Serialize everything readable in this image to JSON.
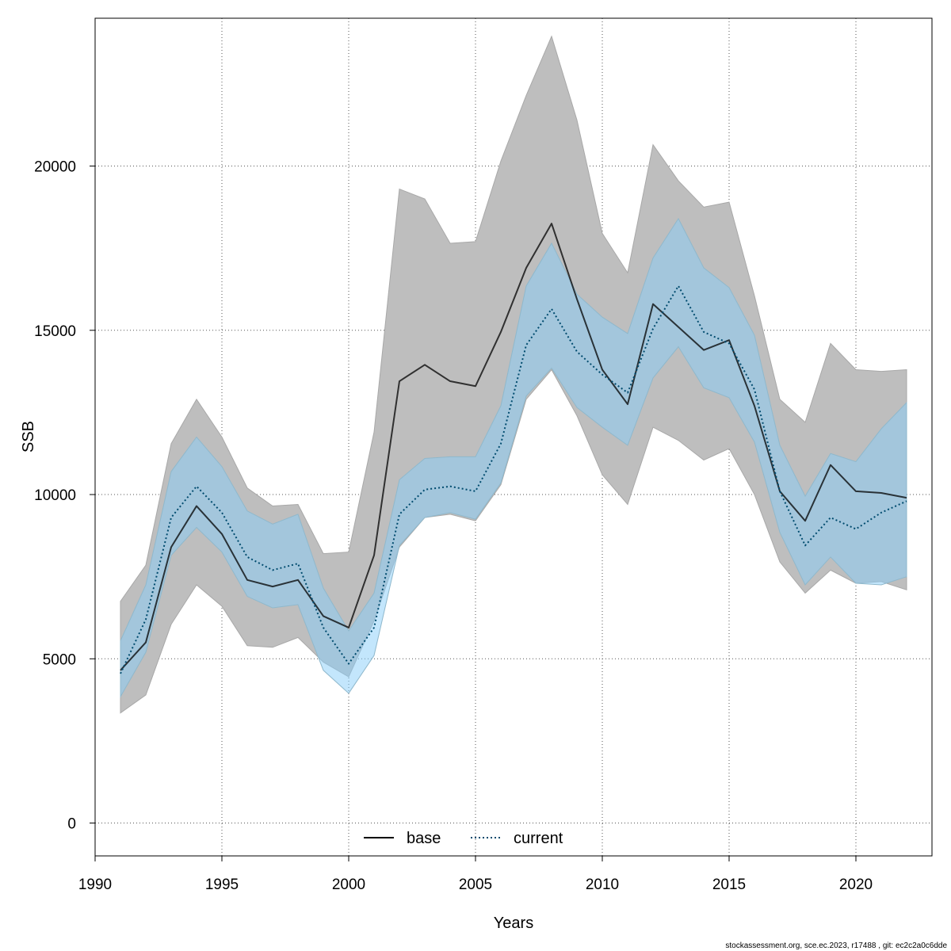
{
  "chart_data": {
    "type": "line",
    "xlabel": "Years",
    "ylabel": "SSB",
    "xlim": [
      1990,
      2023
    ],
    "ylim": [
      -1000,
      24500
    ],
    "x_ticks": [
      1990,
      1995,
      2000,
      2005,
      2010,
      2015,
      2020
    ],
    "x_tick_labels": [
      "1990",
      "1995",
      "2000",
      "2005",
      "2010",
      "2015",
      "2020"
    ],
    "y_ticks": [
      0,
      5000,
      10000,
      15000,
      20000
    ],
    "y_tick_labels": [
      "0",
      "5000",
      "10000",
      "15000",
      "20000"
    ],
    "grid": true,
    "legend_position": "bottom",
    "x": [
      1991,
      1992,
      1993,
      1994,
      1995,
      1996,
      1997,
      1998,
      1999,
      2000,
      2001,
      2002,
      2003,
      2004,
      2005,
      2006,
      2007,
      2008,
      2009,
      2010,
      2011,
      2012,
      2013,
      2014,
      2015,
      2016,
      2017,
      2018,
      2019,
      2020,
      2021,
      2022
    ],
    "series": [
      {
        "name": "base",
        "color": "#000000",
        "band_color": "#bebebe",
        "dash": "solid",
        "values": [
          4650,
          5500,
          8400,
          9650,
          8800,
          7400,
          7200,
          7400,
          6300,
          5950,
          8150,
          13450,
          13950,
          13450,
          13300,
          14950,
          16900,
          18250,
          15950,
          13800,
          12750,
          15800,
          15100,
          14400,
          14700,
          12700,
          10100,
          9200,
          10900,
          10100,
          10050,
          9900
        ],
        "lower": [
          3350,
          3900,
          6050,
          7250,
          6600,
          5400,
          5350,
          5650,
          4900,
          4450,
          6150,
          8400,
          9300,
          9400,
          9200,
          10300,
          12900,
          13800,
          12400,
          10600,
          9700,
          12050,
          11650,
          11050,
          11400,
          10000,
          7950,
          7000,
          7700,
          7300,
          7350,
          7100
        ],
        "upper": [
          6750,
          7850,
          11550,
          12900,
          11750,
          10200,
          9650,
          9700,
          8200,
          8250,
          11900,
          19300,
          19000,
          17650,
          17700,
          20150,
          22150,
          23950,
          21400,
          17950,
          16750,
          20650,
          19550,
          18750,
          18900,
          16050,
          12900,
          12200,
          14600,
          13800,
          13750,
          13800
        ]
      },
      {
        "name": "current",
        "color": "#004b6e",
        "band_color": "#87cefa",
        "dash": "dotted",
        "values": [
          4550,
          6200,
          9300,
          10250,
          9450,
          8100,
          7700,
          7900,
          5950,
          4850,
          5950,
          9400,
          10150,
          10250,
          10100,
          11550,
          14550,
          15650,
          14350,
          13650,
          13100,
          15050,
          16350,
          14950,
          14600,
          13200,
          10100,
          8450,
          9300,
          8950,
          9450,
          9800
        ],
        "lower": [
          3850,
          5200,
          8150,
          9000,
          8250,
          6900,
          6550,
          6650,
          4650,
          3950,
          5100,
          8450,
          9300,
          9450,
          9250,
          10350,
          13000,
          13850,
          12650,
          12050,
          11500,
          13550,
          14500,
          13250,
          12950,
          11600,
          8850,
          7250,
          8100,
          7300,
          7250,
          7500
        ],
        "upper": [
          5550,
          7250,
          10700,
          11750,
          10850,
          9500,
          9100,
          9400,
          7150,
          5850,
          7000,
          10450,
          11100,
          11150,
          11150,
          12700,
          16350,
          17650,
          16100,
          15400,
          14900,
          17200,
          18400,
          16900,
          16300,
          14850,
          11500,
          9950,
          11250,
          11000,
          12000,
          12800
        ]
      }
    ],
    "footer": "stockassessment.org, sce.ec.2023, r17488 , git: ec2c2a0c6dde"
  }
}
